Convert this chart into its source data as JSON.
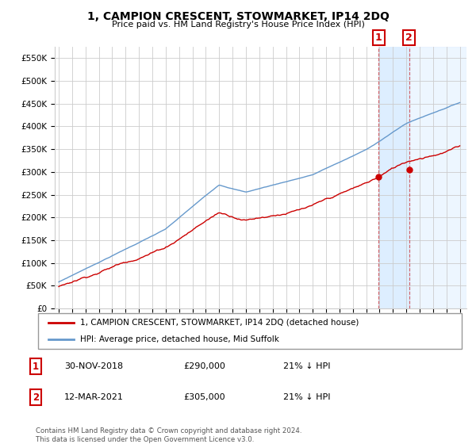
{
  "title": "1, CAMPION CRESCENT, STOWMARKET, IP14 2DQ",
  "subtitle": "Price paid vs. HM Land Registry's House Price Index (HPI)",
  "legend_line1": "1, CAMPION CRESCENT, STOWMARKET, IP14 2DQ (detached house)",
  "legend_line2": "HPI: Average price, detached house, Mid Suffolk",
  "footnote": "Contains HM Land Registry data © Crown copyright and database right 2024.\nThis data is licensed under the Open Government Licence v3.0.",
  "table_rows": [
    {
      "num": "1",
      "date": "30-NOV-2018",
      "price": "£290,000",
      "note": "21% ↓ HPI"
    },
    {
      "num": "2",
      "date": "12-MAR-2021",
      "price": "£305,000",
      "note": "21% ↓ HPI"
    }
  ],
  "sale1_year": 2018.917,
  "sale1_price": 290000,
  "sale2_year": 2021.208,
  "sale2_price": 305000,
  "ylim": [
    0,
    575000
  ],
  "yticks": [
    0,
    50000,
    100000,
    150000,
    200000,
    250000,
    300000,
    350000,
    400000,
    450000,
    500000,
    550000
  ],
  "hpi_color": "#6699cc",
  "price_color": "#cc0000",
  "shading_color": "#ddeeff",
  "marker_box_color": "#cc0000",
  "grid_color": "#cccccc",
  "bg_color": "#ffffff"
}
